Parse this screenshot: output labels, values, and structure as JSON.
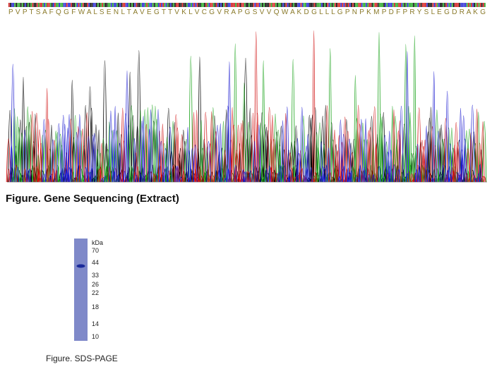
{
  "sequence": {
    "residues": "P V P T S A F Q G F W A L S E N L T A V E G T T V K L V C G V R A P G S V V Q W A K D G L L L G P N P K M P D F P R Y S L E G D R A K G"
  },
  "chromatogram": {
    "caption": "Figure. Gene Sequencing (Extract)"
  },
  "gel": {
    "unit": "kDa",
    "markers": [
      70,
      44,
      33,
      26,
      22,
      18,
      14,
      10
    ],
    "caption": "Figure. SDS-PAGE"
  }
}
